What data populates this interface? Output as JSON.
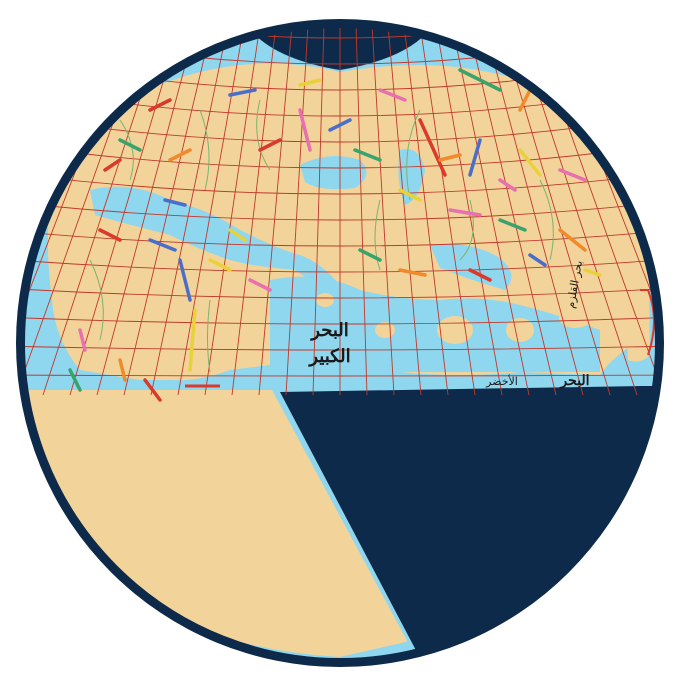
{
  "map": {
    "colors": {
      "ocean": "#8fd6ef",
      "land": "#f2d49a",
      "dark": "#0d2a4a",
      "grid": "#c0392b",
      "rivers": "#7cb36b",
      "mountains": [
        "#d93a2b",
        "#4a6ec9",
        "#e8d23a",
        "#e86fb0",
        "#3aa36b",
        "#f08a2b"
      ]
    },
    "labels": {
      "sea_label_1": "البحر",
      "sea_label_2": "الكبير",
      "sea_label_3": "الأخضر",
      "sea_label_4": "البحر",
      "sea_label_5": "بحر القلزم"
    }
  }
}
